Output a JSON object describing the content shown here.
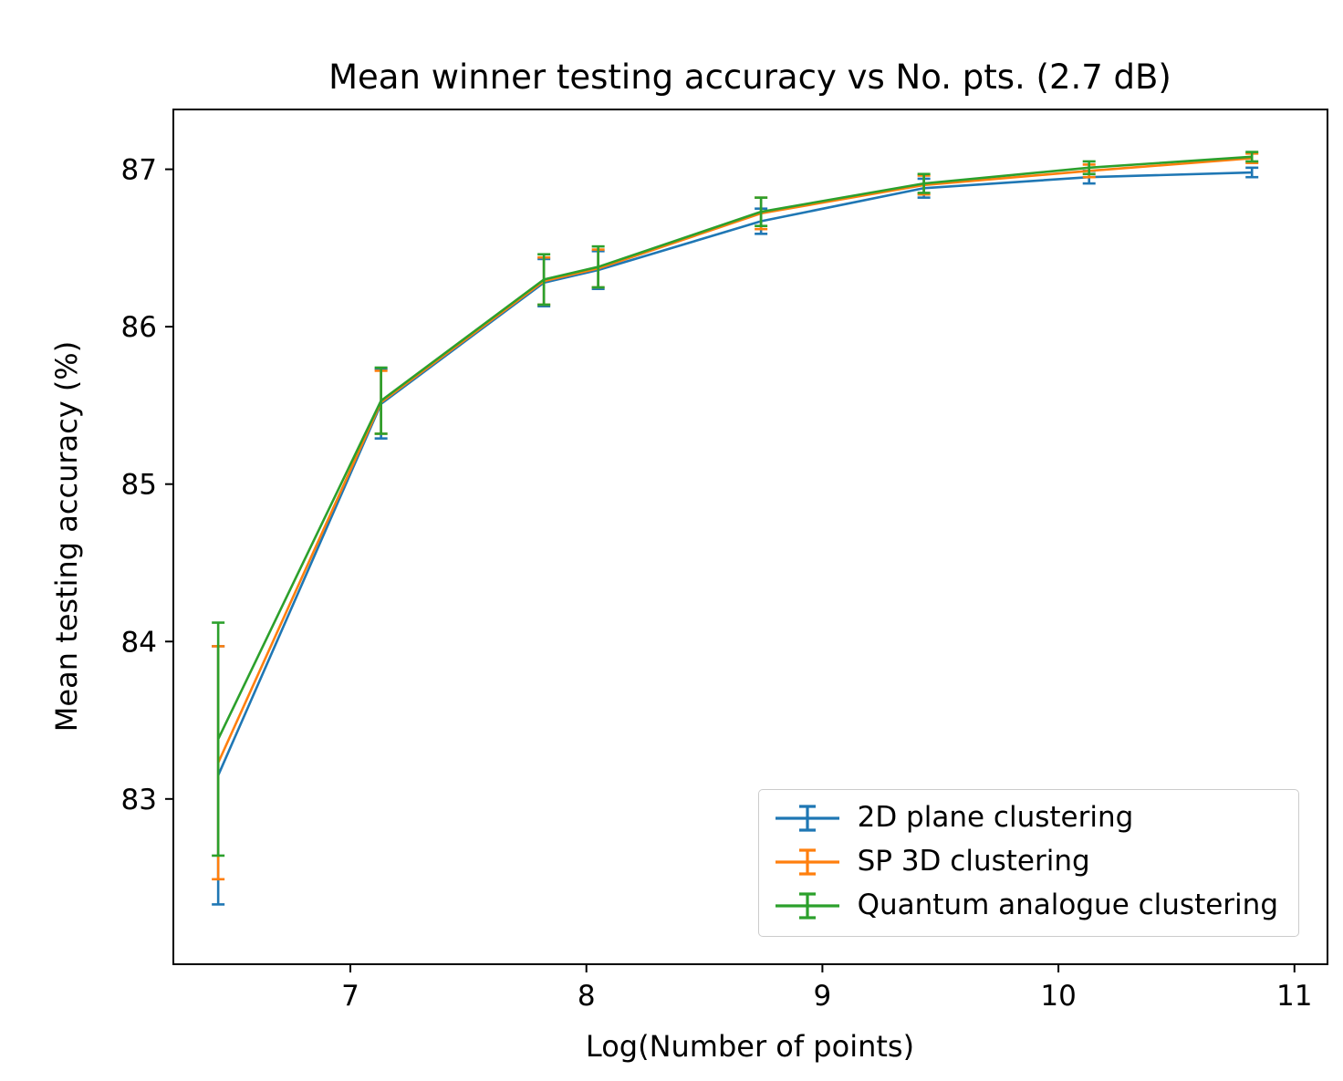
{
  "chart_data": {
    "type": "line",
    "title": "Mean winner testing accuracy vs No. pts. (2.7 dB)",
    "xlabel": "Log(Number of points)",
    "ylabel": "Mean testing accuracy  (%)",
    "xlim": [
      6.25,
      11.14
    ],
    "ylim": [
      81.95,
      87.38
    ],
    "xticks": [
      7,
      8,
      9,
      10,
      11
    ],
    "yticks": [
      83,
      84,
      85,
      86,
      87
    ],
    "grid": false,
    "legend_position": "lower right",
    "error_bars": true,
    "x": [
      6.44,
      7.13,
      7.82,
      8.05,
      8.74,
      9.43,
      10.13,
      10.82
    ],
    "series": [
      {
        "name": "2D plane clustering",
        "color": "#1f77b4",
        "y": [
          83.15,
          85.51,
          86.28,
          86.36,
          86.67,
          86.88,
          86.95,
          86.98
        ],
        "yerr": [
          0.82,
          0.22,
          0.15,
          0.12,
          0.08,
          0.06,
          0.04,
          0.03
        ]
      },
      {
        "name": "SP 3D clustering",
        "color": "#ff7f0e",
        "y": [
          83.23,
          85.52,
          86.29,
          86.37,
          86.72,
          86.9,
          86.99,
          87.07
        ],
        "yerr": [
          0.74,
          0.2,
          0.15,
          0.12,
          0.1,
          0.06,
          0.04,
          0.03
        ]
      },
      {
        "name": "Quantum analogue clustering",
        "color": "#2ca02c",
        "y": [
          83.38,
          85.53,
          86.3,
          86.38,
          86.73,
          86.91,
          87.01,
          87.08
        ],
        "yerr": [
          0.74,
          0.21,
          0.16,
          0.13,
          0.09,
          0.06,
          0.04,
          0.03
        ]
      }
    ]
  }
}
